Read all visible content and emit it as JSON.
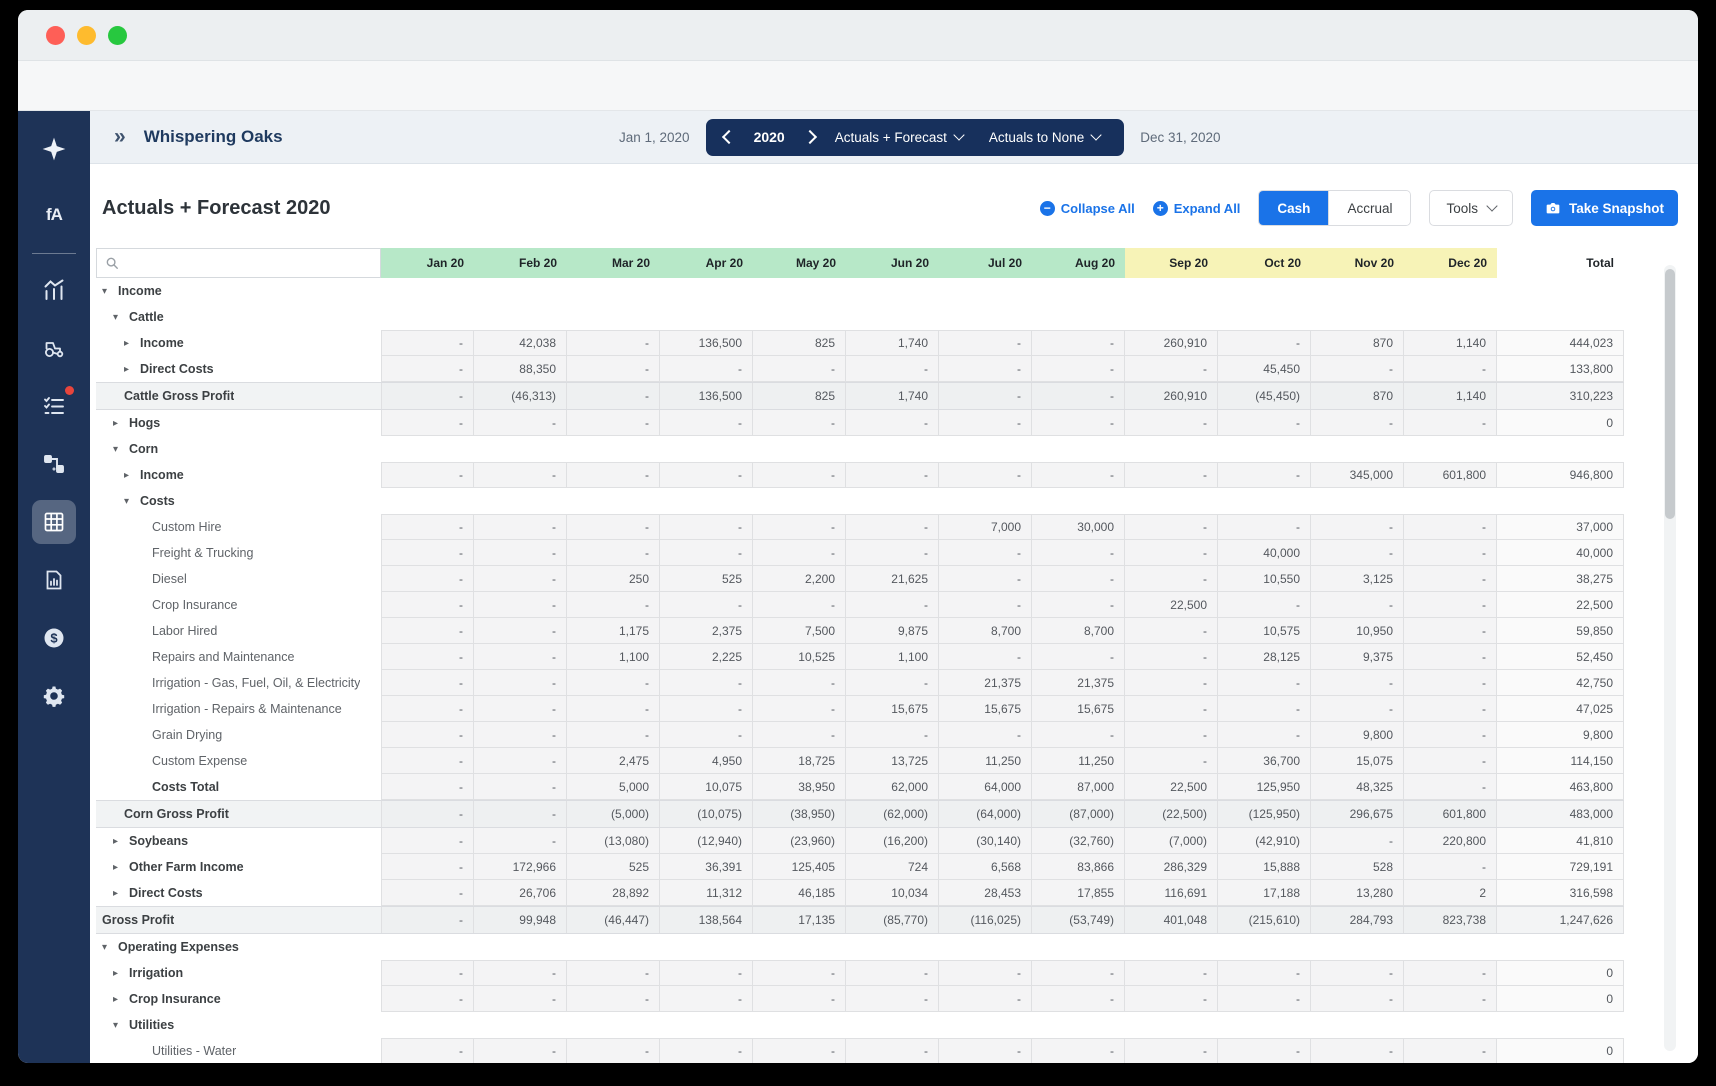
{
  "window": {
    "traffic_lights": [
      "close",
      "minimize",
      "zoom"
    ]
  },
  "header": {
    "farm_name": "Whispering Oaks",
    "start_date": "Jan 1, 2020",
    "end_date": "Dec 31, 2020",
    "year": "2020",
    "view_select": "Actuals + Forecast",
    "comparison_select": "Actuals to None"
  },
  "toolbar": {
    "page_title": "Actuals + Forecast 2020",
    "collapse_all": "Collapse All",
    "expand_all": "Expand All",
    "cash": "Cash",
    "accrual": "Accrual",
    "tools": "Tools",
    "take_snapshot": "Take Snapshot"
  },
  "sidebar": {
    "icons": [
      "sparkle-logo",
      "brand-logo",
      "analytics",
      "equipment",
      "tasks",
      "workflows",
      "spreadsheet",
      "reports",
      "funding",
      "settings"
    ],
    "active": "spreadsheet",
    "badge_on": "tasks",
    "brand_text": "fA"
  },
  "colors": {
    "accent_blue": "#1a73e8",
    "pill_navy": "#17305c",
    "sidebar_navy": "#1e3357",
    "green_header": "#b7e8c8",
    "yellow_header": "#f7f3b7",
    "badge_red": "#e8453c",
    "traffic_red": "#fe5f57",
    "traffic_yellow": "#febb2e",
    "traffic_green": "#27c83f"
  },
  "table": {
    "columns": [
      "Jan 20",
      "Feb 20",
      "Mar 20",
      "Apr 20",
      "May 20",
      "Jun 20",
      "Jul 20",
      "Aug 20",
      "Sep 20",
      "Oct 20",
      "Nov 20",
      "Dec 20",
      "Total"
    ],
    "green_columns": 8,
    "yellow_columns": 4,
    "rows": [
      {
        "label": "Income",
        "level": 1,
        "arrow": "expanded",
        "bold": true,
        "type": "group",
        "values": null
      },
      {
        "label": "Cattle",
        "level": 2,
        "arrow": "expanded",
        "bold": true,
        "type": "group",
        "values": null
      },
      {
        "label": "Income",
        "level": 3,
        "arrow": "collapsed",
        "bold": true,
        "type": "data",
        "values": [
          "-",
          "42,038",
          "-",
          "136,500",
          "825",
          "1,740",
          "-",
          "-",
          "260,910",
          "-",
          "870",
          "1,140",
          "444,023"
        ]
      },
      {
        "label": "Direct Costs",
        "level": 3,
        "arrow": "collapsed",
        "bold": true,
        "type": "data",
        "values": [
          "-",
          "88,350",
          "-",
          "-",
          "-",
          "-",
          "-",
          "-",
          "-",
          "45,450",
          "-",
          "-",
          "133,800"
        ]
      },
      {
        "label": "Cattle Gross Profit",
        "level": 3,
        "arrow": null,
        "bold": true,
        "type": "total",
        "values": [
          "-",
          "(46,313)",
          "-",
          "136,500",
          "825",
          "1,740",
          "-",
          "-",
          "260,910",
          "(45,450)",
          "870",
          "1,140",
          "310,223"
        ]
      },
      {
        "label": "Hogs",
        "level": 2,
        "arrow": "collapsed",
        "bold": true,
        "type": "data",
        "values": [
          "-",
          "-",
          "-",
          "-",
          "-",
          "-",
          "-",
          "-",
          "-",
          "-",
          "-",
          "-",
          "0"
        ]
      },
      {
        "label": "Corn",
        "level": 2,
        "arrow": "expanded",
        "bold": true,
        "type": "group",
        "values": null
      },
      {
        "label": "Income",
        "level": 3,
        "arrow": "collapsed",
        "bold": true,
        "type": "data",
        "values": [
          "-",
          "-",
          "-",
          "-",
          "-",
          "-",
          "-",
          "-",
          "-",
          "-",
          "345,000",
          "601,800",
          "946,800"
        ]
      },
      {
        "label": "Costs",
        "level": 3,
        "arrow": "expanded",
        "bold": true,
        "type": "group",
        "values": null
      },
      {
        "label": "Custom Hire",
        "level": 4,
        "leaf": true,
        "arrow": null,
        "bold": false,
        "type": "data",
        "values": [
          "-",
          "-",
          "-",
          "-",
          "-",
          "-",
          "7,000",
          "30,000",
          "-",
          "-",
          "-",
          "-",
          "37,000"
        ]
      },
      {
        "label": "Freight & Trucking",
        "level": 4,
        "leaf": true,
        "arrow": null,
        "bold": false,
        "type": "data",
        "values": [
          "-",
          "-",
          "-",
          "-",
          "-",
          "-",
          "-",
          "-",
          "-",
          "40,000",
          "-",
          "-",
          "40,000"
        ]
      },
      {
        "label": "Diesel",
        "level": 4,
        "leaf": true,
        "arrow": null,
        "bold": false,
        "type": "data",
        "values": [
          "-",
          "-",
          "250",
          "525",
          "2,200",
          "21,625",
          "-",
          "-",
          "-",
          "10,550",
          "3,125",
          "-",
          "38,275"
        ]
      },
      {
        "label": "Crop Insurance",
        "level": 4,
        "leaf": true,
        "arrow": null,
        "bold": false,
        "type": "data",
        "values": [
          "-",
          "-",
          "-",
          "-",
          "-",
          "-",
          "-",
          "-",
          "22,500",
          "-",
          "-",
          "-",
          "22,500"
        ]
      },
      {
        "label": "Labor Hired",
        "level": 4,
        "leaf": true,
        "arrow": null,
        "bold": false,
        "type": "data",
        "values": [
          "-",
          "-",
          "1,175",
          "2,375",
          "7,500",
          "9,875",
          "8,700",
          "8,700",
          "-",
          "10,575",
          "10,950",
          "-",
          "59,850"
        ]
      },
      {
        "label": "Repairs and Maintenance",
        "level": 4,
        "leaf": true,
        "arrow": null,
        "bold": false,
        "type": "data",
        "values": [
          "-",
          "-",
          "1,100",
          "2,225",
          "10,525",
          "1,100",
          "-",
          "-",
          "-",
          "28,125",
          "9,375",
          "-",
          "52,450"
        ]
      },
      {
        "label": "Irrigation - Gas, Fuel, Oil, & Electricity",
        "level": 4,
        "leaf": true,
        "arrow": null,
        "bold": false,
        "type": "data",
        "values": [
          "-",
          "-",
          "-",
          "-",
          "-",
          "-",
          "21,375",
          "21,375",
          "-",
          "-",
          "-",
          "-",
          "42,750"
        ]
      },
      {
        "label": "Irrigation - Repairs & Maintenance",
        "level": 4,
        "leaf": true,
        "arrow": null,
        "bold": false,
        "type": "data",
        "values": [
          "-",
          "-",
          "-",
          "-",
          "-",
          "15,675",
          "15,675",
          "15,675",
          "-",
          "-",
          "-",
          "-",
          "47,025"
        ]
      },
      {
        "label": "Grain Drying",
        "level": 4,
        "leaf": true,
        "arrow": null,
        "bold": false,
        "type": "data",
        "values": [
          "-",
          "-",
          "-",
          "-",
          "-",
          "-",
          "-",
          "-",
          "-",
          "-",
          "9,800",
          "-",
          "9,800"
        ]
      },
      {
        "label": "Custom Expense",
        "level": 4,
        "leaf": true,
        "arrow": null,
        "bold": false,
        "type": "data",
        "values": [
          "-",
          "-",
          "2,475",
          "4,950",
          "18,725",
          "13,725",
          "11,250",
          "11,250",
          "-",
          "36,700",
          "15,075",
          "-",
          "114,150"
        ]
      },
      {
        "label": "Costs Total",
        "level": 4,
        "leaf": true,
        "arrow": null,
        "bold": true,
        "type": "data",
        "values": [
          "-",
          "-",
          "5,000",
          "10,075",
          "38,950",
          "62,000",
          "64,000",
          "87,000",
          "22,500",
          "125,950",
          "48,325",
          "-",
          "463,800"
        ]
      },
      {
        "label": "Corn Gross Profit",
        "level": 3,
        "arrow": null,
        "bold": true,
        "type": "total",
        "values": [
          "-",
          "-",
          "(5,000)",
          "(10,075)",
          "(38,950)",
          "(62,000)",
          "(64,000)",
          "(87,000)",
          "(22,500)",
          "(125,950)",
          "296,675",
          "601,800",
          "483,000"
        ]
      },
      {
        "label": "Soybeans",
        "level": 2,
        "arrow": "collapsed",
        "bold": true,
        "type": "data",
        "values": [
          "-",
          "-",
          "(13,080)",
          "(12,940)",
          "(23,960)",
          "(16,200)",
          "(30,140)",
          "(32,760)",
          "(7,000)",
          "(42,910)",
          "-",
          "220,800",
          "41,810"
        ]
      },
      {
        "label": "Other Farm Income",
        "level": 2,
        "arrow": "collapsed",
        "bold": true,
        "type": "data",
        "values": [
          "-",
          "172,966",
          "525",
          "36,391",
          "125,405",
          "724",
          "6,568",
          "83,866",
          "286,329",
          "15,888",
          "528",
          "-",
          "729,191"
        ]
      },
      {
        "label": "Direct Costs",
        "level": 2,
        "arrow": "collapsed",
        "bold": true,
        "type": "data",
        "values": [
          "-",
          "26,706",
          "28,892",
          "11,312",
          "46,185",
          "10,034",
          "28,453",
          "17,855",
          "116,691",
          "17,188",
          "13,280",
          "2",
          "316,598"
        ]
      },
      {
        "label": "Gross Profit",
        "level": 1,
        "arrow": null,
        "bold": true,
        "type": "total",
        "values": [
          "-",
          "99,948",
          "(46,447)",
          "138,564",
          "17,135",
          "(85,770)",
          "(116,025)",
          "(53,749)",
          "401,048",
          "(215,610)",
          "284,793",
          "823,738",
          "1,247,626"
        ]
      },
      {
        "label": "Operating Expenses",
        "level": 1,
        "arrow": "expanded",
        "bold": true,
        "type": "group",
        "values": null
      },
      {
        "label": "Irrigation",
        "level": 2,
        "arrow": "collapsed",
        "bold": true,
        "type": "data",
        "values": [
          "-",
          "-",
          "-",
          "-",
          "-",
          "-",
          "-",
          "-",
          "-",
          "-",
          "-",
          "-",
          "0"
        ]
      },
      {
        "label": "Crop Insurance",
        "level": 2,
        "arrow": "collapsed",
        "bold": true,
        "type": "data",
        "values": [
          "-",
          "-",
          "-",
          "-",
          "-",
          "-",
          "-",
          "-",
          "-",
          "-",
          "-",
          "-",
          "0"
        ]
      },
      {
        "label": "Utilities",
        "level": 2,
        "arrow": "expanded",
        "bold": true,
        "type": "group",
        "values": null
      },
      {
        "label": "Utilities - Water",
        "level": 4,
        "leaf": true,
        "arrow": null,
        "bold": false,
        "type": "data",
        "values": [
          "-",
          "-",
          "-",
          "-",
          "-",
          "-",
          "-",
          "-",
          "-",
          "-",
          "-",
          "-",
          "0"
        ]
      }
    ]
  }
}
